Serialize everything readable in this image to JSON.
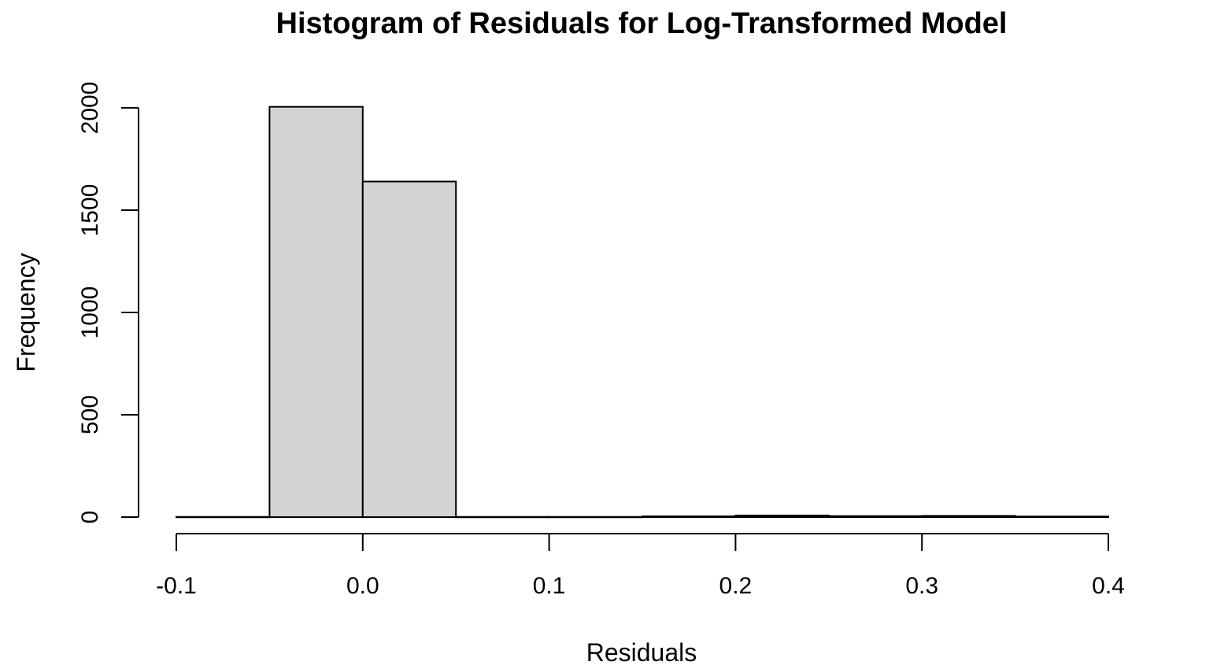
{
  "chart_data": {
    "type": "bar",
    "title": "Histogram of Residuals for Log-Transformed Model",
    "xlabel": "Residuals",
    "ylabel": "Frequency",
    "bin_edges": [
      -0.1,
      -0.05,
      0.0,
      0.05,
      0.1,
      0.15,
      0.2,
      0.25,
      0.3,
      0.35,
      0.4
    ],
    "values": [
      1,
      2005,
      1640,
      1,
      1,
      4,
      8,
      5,
      6,
      3
    ],
    "xlim": [
      -0.1,
      0.4
    ],
    "ylim": [
      0,
      2000
    ],
    "x_ticks": [
      {
        "value": -0.1,
        "label": "-0.1"
      },
      {
        "value": 0.0,
        "label": "0.0"
      },
      {
        "value": 0.1,
        "label": "0.1"
      },
      {
        "value": 0.2,
        "label": "0.2"
      },
      {
        "value": 0.3,
        "label": "0.3"
      },
      {
        "value": 0.4,
        "label": "0.4"
      }
    ],
    "y_ticks": [
      {
        "value": 0,
        "label": "0"
      },
      {
        "value": 500,
        "label": "500"
      },
      {
        "value": 1000,
        "label": "1000"
      },
      {
        "value": 1500,
        "label": "1500"
      },
      {
        "value": 2000,
        "label": "2000"
      }
    ],
    "bar_color": "#d3d3d3",
    "grid": false,
    "legend": "none"
  }
}
